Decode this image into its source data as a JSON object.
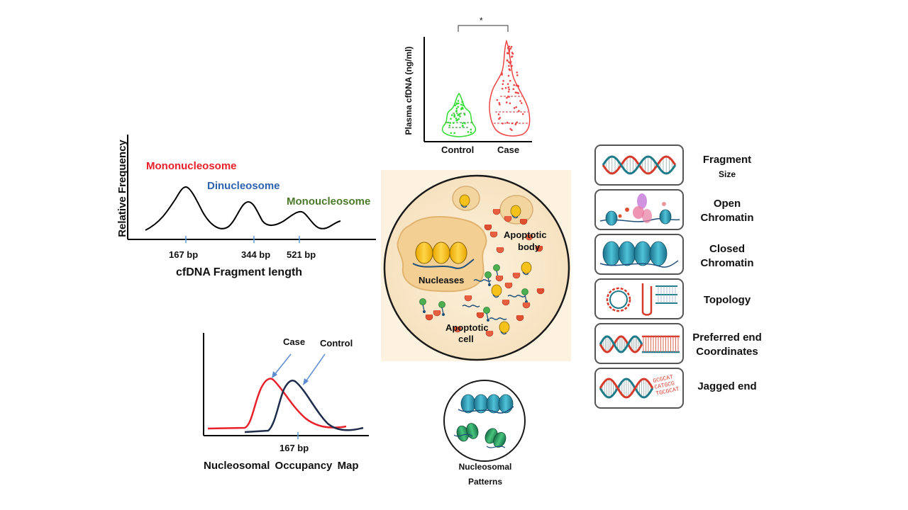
{
  "fragment_panel": {
    "y_label": "Relative Frequency",
    "x_title": "cfDNA Fragment length",
    "ticks": [
      "167 bp",
      "344 bp",
      "521 bp"
    ],
    "peak_labels": {
      "mono": "Mononucleosome",
      "di": "Dinucleosome",
      "tri": "Monoucleosome"
    },
    "colors": {
      "mono": "#e8202a",
      "di": "#2e63b0",
      "tri": "#4a7a2a"
    }
  },
  "violin_panel": {
    "y_label": "Plasma cfDNA (ng/ml)",
    "categories": [
      "Control",
      "Case"
    ],
    "significance": "*",
    "colors": {
      "control": "#33dd33",
      "case": "#ee4444"
    }
  },
  "cell_panel": {
    "labels": {
      "nucleases": "Nucleases",
      "apoptotic_body_1": "Apoptotic",
      "apoptotic_body_2": "body",
      "apoptotic_cell_1": "Apoptotic",
      "apoptotic_cell_2": "cell"
    }
  },
  "occupancy_panel": {
    "series": [
      "Case",
      "Control"
    ],
    "tick": "167 bp",
    "title": "Nucleosomal Occupancy Map",
    "colors": {
      "case": "#e8202a",
      "control": "#1f2d4d"
    }
  },
  "patterns_panel": {
    "label_1": "Nucleosomal",
    "label_2": "Patterns"
  },
  "features": [
    {
      "line1": "Fragment",
      "line2": "Size",
      "icon": "dna-helix-icon"
    },
    {
      "line1": "Open",
      "line2": "Chromatin",
      "icon": "open-chromatin-icon"
    },
    {
      "line1": "Closed",
      "line2": "Chromatin",
      "icon": "closed-chromatin-icon"
    },
    {
      "line1": "Topology",
      "line2": "",
      "icon": "topology-icon"
    },
    {
      "line1": "Preferred end",
      "line2": "Coordinates",
      "icon": "end-coordinates-icon"
    },
    {
      "line1": "Jagged end",
      "line2": "",
      "icon": "jagged-end-icon"
    }
  ],
  "jagged_sequences": [
    "GCGCAT",
    "CATGCG",
    "TGCGCAT"
  ]
}
